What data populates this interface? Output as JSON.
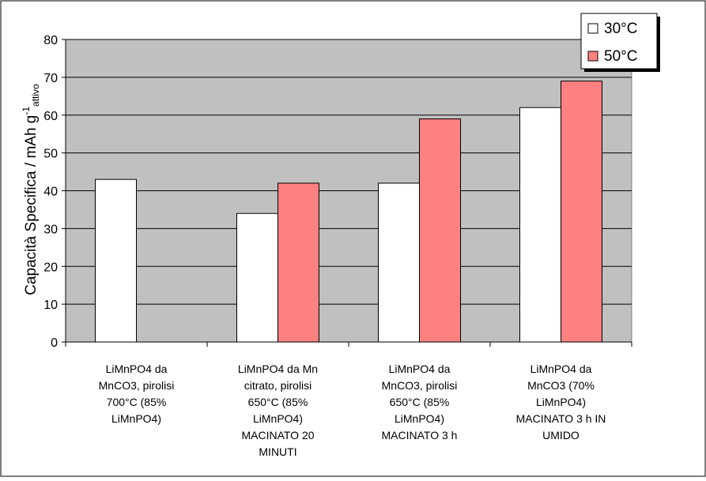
{
  "chart_data": {
    "type": "bar",
    "ylabel": "Capacità Specifica / mAh g",
    "ylabel_sup": "-1",
    "ylabel_sub": "attivo",
    "ylim": [
      0,
      80
    ],
    "yticks": [
      0,
      10,
      20,
      30,
      40,
      50,
      60,
      70,
      80
    ],
    "grid": true,
    "legend_position": "top-right",
    "categories": [
      [
        "LiMnPO4 da",
        "MnCO3, pirolisi",
        "700°C (85%",
        "LiMnPO4)"
      ],
      [
        "LiMnPO4 da Mn",
        "citrato, pirolisi",
        "650°C (85%",
        "LiMnPO4)",
        "MACINATO 20",
        "MINUTI"
      ],
      [
        "LiMnPO4 da",
        "MnCO3, pirolisi",
        "650°C (85%",
        "LiMnPO4)",
        "MACINATO 3 h"
      ],
      [
        "LiMnPO4 da",
        "MnCO3 (70%",
        "LiMnPO4)",
        "MACINATO 3 h IN",
        "UMIDO"
      ]
    ],
    "series": [
      {
        "name": "30°C",
        "color": "#ffffff",
        "values": [
          43,
          34,
          42,
          62
        ]
      },
      {
        "name": "50°C",
        "color": "#ff8080",
        "values": [
          null,
          42,
          59,
          69
        ]
      }
    ],
    "plot_background": "#c0c0c0"
  }
}
